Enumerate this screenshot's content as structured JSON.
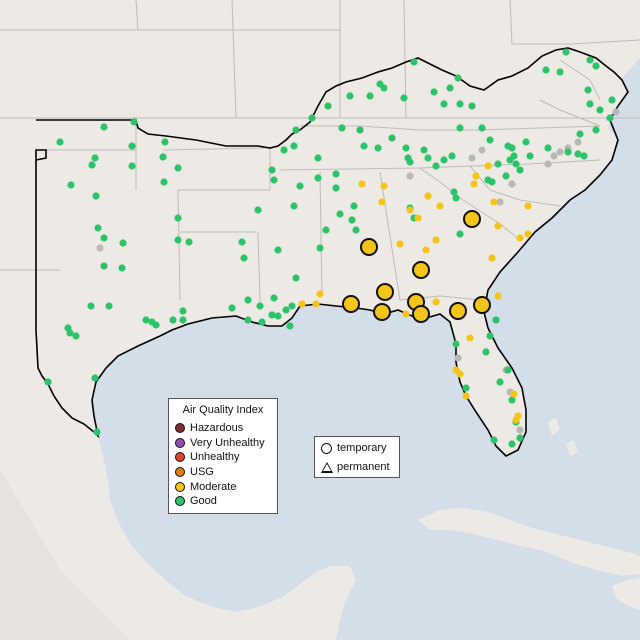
{
  "legend": {
    "title": "Air Quality Index",
    "categories": [
      {
        "label": "Hazardous",
        "color": "#7e2e2e"
      },
      {
        "label": "Very Unhealthy",
        "color": "#8f4fb6"
      },
      {
        "label": "Unhealthy",
        "color": "#e0442c"
      },
      {
        "label": "USG",
        "color": "#e07b17"
      },
      {
        "label": "Moderate",
        "color": "#f2c518"
      },
      {
        "label": "Good",
        "color": "#2ec36a"
      }
    ]
  },
  "monitor_types": {
    "temporary": "temporary",
    "permanent": "permanent"
  },
  "colors": {
    "water": "#d4dee8",
    "land": "#ede9e5",
    "border": "#bfbab5",
    "region_outline": "#000000",
    "offline": "#b8b8b8"
  }
}
